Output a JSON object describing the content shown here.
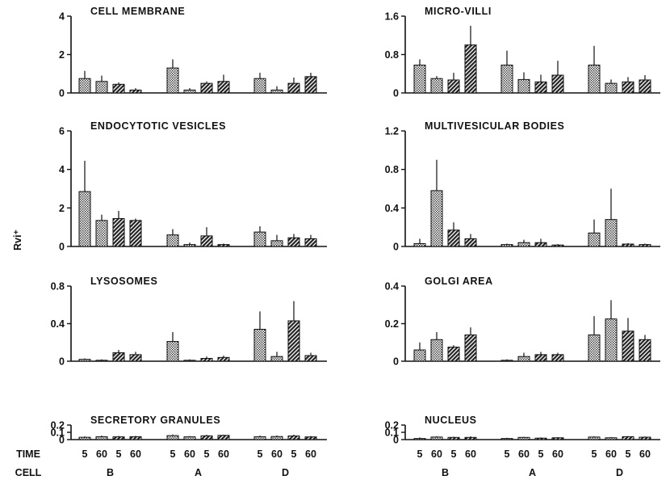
{
  "ylabel": "Rvi⁺",
  "row_labels": {
    "time": "TIME",
    "cell": "CELL"
  },
  "time_labels": [
    "5",
    "60",
    "5",
    "60"
  ],
  "cell_labels": [
    "B",
    "A",
    "D"
  ],
  "chart_data": [
    {
      "type": "bar",
      "title": "CELL MEMBRANE",
      "ylim": [
        0,
        4
      ],
      "yticks": [
        "0",
        "2",
        "4"
      ],
      "groups": [
        "B",
        "A",
        "D"
      ],
      "times": [
        "5",
        "60",
        "5",
        "60"
      ],
      "values": [
        [
          0.75,
          0.6,
          0.45,
          0.15
        ],
        [
          1.3,
          0.15,
          0.5,
          0.6
        ],
        [
          0.75,
          0.15,
          0.5,
          0.85
        ]
      ],
      "errors": [
        [
          0.4,
          0.3,
          0.1,
          0.1
        ],
        [
          0.45,
          0.1,
          0.1,
          0.35
        ],
        [
          0.3,
          0.2,
          0.3,
          0.2
        ]
      ]
    },
    {
      "type": "bar",
      "title": "MICRO-VILLI",
      "ylim": [
        0,
        1.6
      ],
      "yticks": [
        "0",
        "0.8",
        "1.6"
      ],
      "groups": [
        "B",
        "A",
        "D"
      ],
      "times": [
        "5",
        "60",
        "5",
        "60"
      ],
      "values": [
        [
          0.58,
          0.3,
          0.27,
          1.0
        ],
        [
          0.58,
          0.28,
          0.23,
          0.37
        ],
        [
          0.58,
          0.2,
          0.23,
          0.27
        ]
      ],
      "errors": [
        [
          0.12,
          0.05,
          0.15,
          0.4
        ],
        [
          0.3,
          0.15,
          0.15,
          0.3
        ],
        [
          0.4,
          0.08,
          0.1,
          0.1
        ]
      ]
    },
    {
      "type": "bar",
      "title": "ENDOCYTOTIC VESICLES",
      "ylim": [
        0,
        6
      ],
      "yticks": [
        "0",
        "2",
        "4",
        "6"
      ],
      "groups": [
        "B",
        "A",
        "D"
      ],
      "times": [
        "5",
        "60",
        "5",
        "60"
      ],
      "values": [
        [
          2.85,
          1.35,
          1.45,
          1.35
        ],
        [
          0.6,
          0.1,
          0.55,
          0.1
        ],
        [
          0.75,
          0.3,
          0.45,
          0.4
        ]
      ],
      "errors": [
        [
          1.6,
          0.3,
          0.4,
          0.1
        ],
        [
          0.3,
          0.1,
          0.45,
          0.05
        ],
        [
          0.3,
          0.3,
          0.2,
          0.2
        ]
      ]
    },
    {
      "type": "bar",
      "title": "MULTIVESICULAR BODIES",
      "ylim": [
        0,
        1.2
      ],
      "yticks": [
        "0",
        "0.4",
        "0.8",
        "1.2"
      ],
      "groups": [
        "B",
        "A",
        "D"
      ],
      "times": [
        "5",
        "60",
        "5",
        "60"
      ],
      "values": [
        [
          0.03,
          0.58,
          0.17,
          0.08
        ],
        [
          0.02,
          0.04,
          0.04,
          0.015
        ],
        [
          0.14,
          0.28,
          0.025,
          0.02
        ]
      ],
      "errors": [
        [
          0.05,
          0.32,
          0.08,
          0.05
        ],
        [
          0.01,
          0.03,
          0.04,
          0.01
        ],
        [
          0.14,
          0.32,
          0.01,
          0.01
        ]
      ]
    },
    {
      "type": "bar",
      "title": "LYSOSOMES",
      "ylim": [
        0,
        0.8
      ],
      "yticks": [
        "0",
        "0.4",
        "0.8"
      ],
      "groups": [
        "B",
        "A",
        "D"
      ],
      "times": [
        "5",
        "60",
        "5",
        "60"
      ],
      "values": [
        [
          0.02,
          0.01,
          0.09,
          0.07
        ],
        [
          0.21,
          0.01,
          0.03,
          0.04
        ],
        [
          0.34,
          0.05,
          0.43,
          0.06
        ]
      ],
      "errors": [
        [
          0.01,
          0.01,
          0.03,
          0.03
        ],
        [
          0.1,
          0.01,
          0.02,
          0.02
        ],
        [
          0.19,
          0.05,
          0.21,
          0.03
        ]
      ]
    },
    {
      "type": "bar",
      "title": "GOLGI AREA",
      "ylim": [
        0,
        0.4
      ],
      "yticks": [
        "0",
        "0.2",
        "0.4"
      ],
      "groups": [
        "B",
        "A",
        "D"
      ],
      "times": [
        "5",
        "60",
        "5",
        "60"
      ],
      "values": [
        [
          0.06,
          0.115,
          0.075,
          0.14
        ],
        [
          0.005,
          0.025,
          0.035,
          0.035
        ],
        [
          0.14,
          0.225,
          0.16,
          0.115
        ]
      ],
      "errors": [
        [
          0.04,
          0.04,
          0.01,
          0.04
        ],
        [
          0.005,
          0.02,
          0.015,
          0.01
        ],
        [
          0.1,
          0.1,
          0.07,
          0.025
        ]
      ]
    },
    {
      "type": "bar",
      "title": "SECRETORY GRANULES",
      "ylim": [
        0,
        0.2
      ],
      "yticks": [
        "0",
        "0.1",
        "0.2"
      ],
      "groups": [
        "B",
        "A",
        "D"
      ],
      "times": [
        "5",
        "60",
        "5",
        "60"
      ],
      "values": [
        [
          0.032,
          0.04,
          0.038,
          0.04
        ],
        [
          0.055,
          0.038,
          0.052,
          0.058
        ],
        [
          0.04,
          0.042,
          0.05,
          0.037
        ]
      ],
      "errors": [
        [
          0.012,
          0.015,
          0.012,
          0.01
        ],
        [
          0.015,
          0.01,
          0.015,
          0.01
        ],
        [
          0.015,
          0.015,
          0.018,
          0.012
        ]
      ]
    },
    {
      "type": "bar",
      "title": "NUCLEUS",
      "ylim": [
        0,
        0.2
      ],
      "yticks": [
        "0",
        "0.1",
        "0.2"
      ],
      "groups": [
        "B",
        "A",
        "D"
      ],
      "times": [
        "5",
        "60",
        "5",
        "60"
      ],
      "values": [
        [
          0.015,
          0.035,
          0.03,
          0.03
        ],
        [
          0.015,
          0.03,
          0.02,
          0.025
        ],
        [
          0.035,
          0.025,
          0.04,
          0.033
        ]
      ],
      "errors": [
        [
          0.015,
          0.012,
          0.01,
          0.015
        ],
        [
          0.01,
          0.008,
          0.01,
          0.008
        ],
        [
          0.01,
          0.01,
          0.008,
          0.01
        ]
      ]
    }
  ]
}
